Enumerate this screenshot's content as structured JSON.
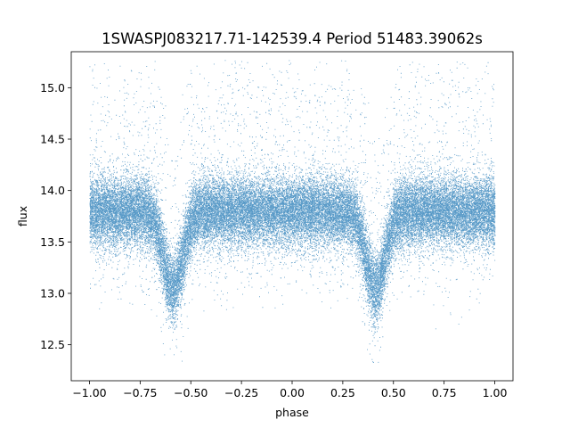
{
  "chart_data": {
    "type": "scatter",
    "title": "1SWASPJ083217.71-142539.4 Period 51483.39062s",
    "xlabel": "phase",
    "ylabel": "flux",
    "xlim": [
      -1.09,
      1.09
    ],
    "ylim": [
      12.15,
      15.35
    ],
    "xticks": [
      -1.0,
      -0.75,
      -0.5,
      -0.25,
      0.0,
      0.25,
      0.5,
      0.75,
      1.0
    ],
    "xtick_labels": [
      "−1.00",
      "−0.75",
      "−0.50",
      "−0.25",
      "0.00",
      "0.25",
      "0.50",
      "0.75",
      "1.00"
    ],
    "yticks": [
      12.5,
      13.0,
      13.5,
      14.0,
      14.5,
      15.0
    ],
    "ytick_labels": [
      "12.5",
      "13.0",
      "13.5",
      "14.0",
      "14.5",
      "15.0"
    ],
    "series": [
      {
        "color": "#1f77b4",
        "marker": "point",
        "x_range": [
          -1.0,
          1.0
        ],
        "baseline_flux": 13.8,
        "scatter_sigma": 0.2,
        "eclipse_centers": [
          -0.59,
          0.41
        ],
        "eclipse_min_flux": 13.05,
        "eclipse_half_width": 0.07,
        "point_count": 42000
      }
    ],
    "grid": false,
    "legend": "none"
  }
}
